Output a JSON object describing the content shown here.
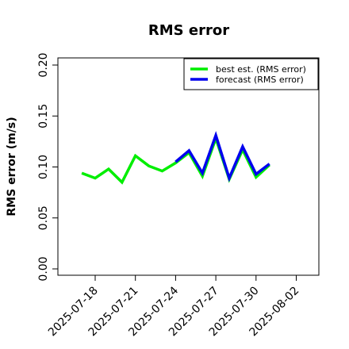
{
  "chart_data": {
    "type": "line",
    "title": "RMS error",
    "ylabel": "RMS error (m/s)",
    "xlabel": "",
    "ylim": [
      0.0,
      0.21
    ],
    "yticks": [
      0.0,
      0.05,
      0.1,
      0.15,
      0.2
    ],
    "ytick_labels": [
      "0.00",
      "0.05",
      "0.10",
      "0.15",
      "0.20"
    ],
    "xlim": [
      "2025-07-15",
      "2025-08-03"
    ],
    "xticks": [
      "2025-07-18",
      "2025-07-21",
      "2025-07-24",
      "2025-07-27",
      "2025-07-30",
      "2025-08-02"
    ],
    "xtick_colors": [
      "#000000",
      "#000000",
      "#228b22",
      "#000000",
      "#000000",
      "#000000"
    ],
    "grid": false,
    "legend_position": "top-right",
    "series": [
      {
        "name": "best est. (RMS error)",
        "color": "#00ee00",
        "x": [
          "2025-07-17",
          "2025-07-18",
          "2025-07-19",
          "2025-07-20",
          "2025-07-21",
          "2025-07-22",
          "2025-07-23",
          "2025-07-24",
          "2025-07-25",
          "2025-07-26",
          "2025-07-27",
          "2025-07-28",
          "2025-07-29",
          "2025-07-30",
          "2025-07-31"
        ],
        "values": [
          0.094,
          0.089,
          0.098,
          0.085,
          0.111,
          0.101,
          0.096,
          0.104,
          0.114,
          0.091,
          0.128,
          0.088,
          0.117,
          0.09,
          0.102
        ]
      },
      {
        "name": "forecast (RMS error)",
        "color": "#0000ee",
        "x": [
          "2025-07-24",
          "2025-07-25",
          "2025-07-26",
          "2025-07-27",
          "2025-07-28",
          "2025-07-29",
          "2025-07-30",
          "2025-07-31"
        ],
        "values": [
          0.105,
          0.116,
          0.094,
          0.131,
          0.089,
          0.12,
          0.093,
          0.103
        ]
      }
    ]
  }
}
